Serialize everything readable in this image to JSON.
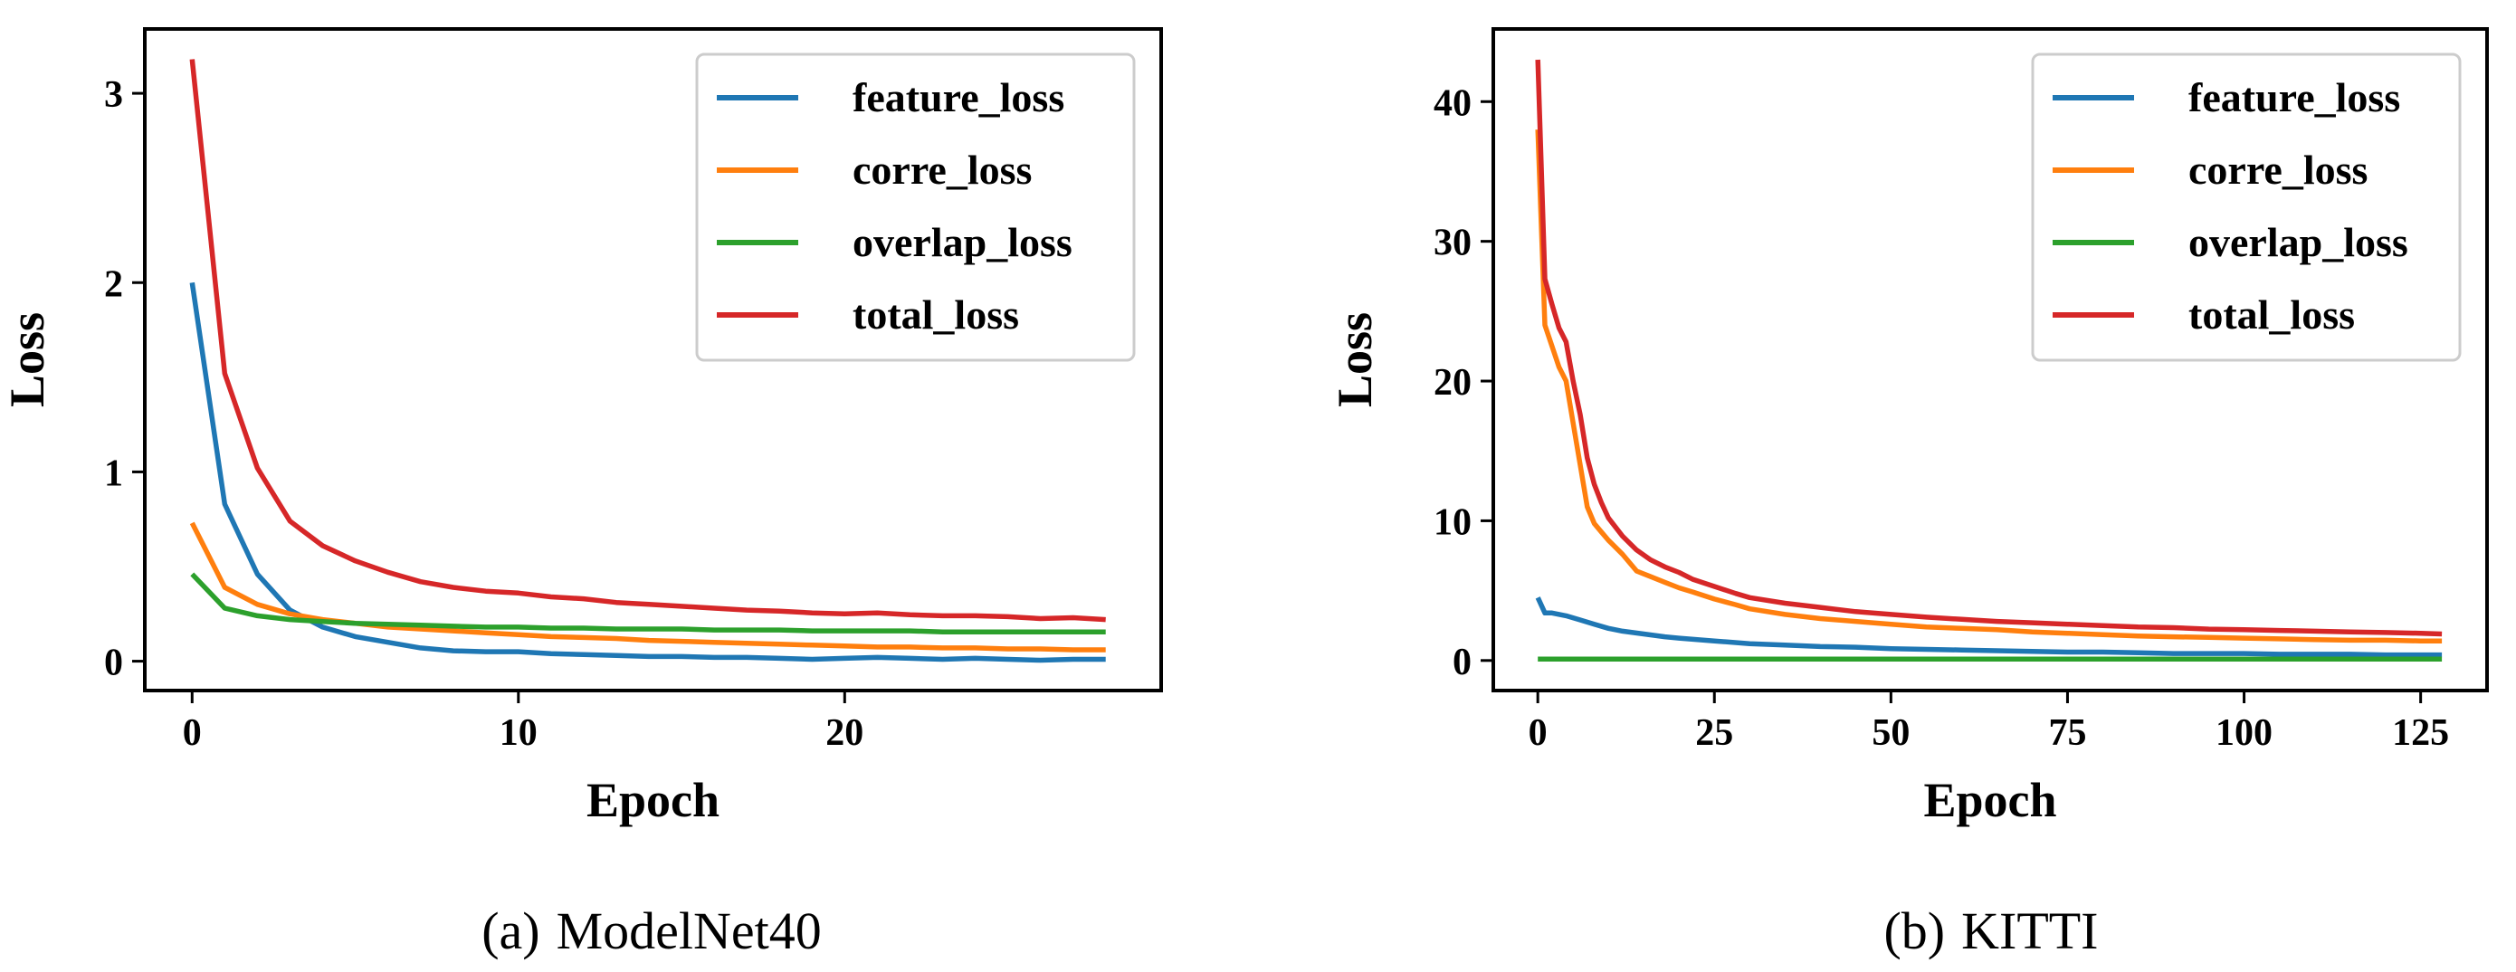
{
  "chart_data": [
    {
      "type": "line",
      "caption_tag": "(a)",
      "caption_text": "ModelNet40",
      "xlabel": "Epoch",
      "ylabel": "Loss",
      "xlim": [
        -1.45,
        29.7
      ],
      "ylim": [
        -0.155,
        3.34
      ],
      "xticks": [
        0,
        10,
        20
      ],
      "yticks": [
        0,
        1,
        2,
        3
      ],
      "legend_position": "top-right",
      "colors": [
        "#1f77b4",
        "#ff7f0e",
        "#2ca02c",
        "#d62728"
      ],
      "series": [
        {
          "name": "feature_loss",
          "x": [
            0,
            1,
            2,
            3,
            4,
            5,
            6,
            7,
            8,
            9,
            10,
            11,
            12,
            13,
            14,
            15,
            16,
            17,
            18,
            19,
            20,
            21,
            22,
            23,
            24,
            25,
            26,
            27,
            28
          ],
          "values": [
            2.0,
            0.83,
            0.46,
            0.27,
            0.18,
            0.13,
            0.1,
            0.07,
            0.055,
            0.05,
            0.05,
            0.04,
            0.035,
            0.03,
            0.025,
            0.025,
            0.02,
            0.02,
            0.015,
            0.01,
            0.015,
            0.02,
            0.015,
            0.01,
            0.015,
            0.01,
            0.005,
            0.01,
            0.01
          ]
        },
        {
          "name": "corre_loss",
          "x": [
            0,
            1,
            2,
            3,
            4,
            5,
            6,
            7,
            8,
            9,
            10,
            11,
            12,
            13,
            14,
            15,
            16,
            17,
            18,
            19,
            20,
            21,
            22,
            23,
            24,
            25,
            26,
            27,
            28
          ],
          "values": [
            0.73,
            0.39,
            0.3,
            0.25,
            0.22,
            0.2,
            0.18,
            0.17,
            0.16,
            0.15,
            0.14,
            0.13,
            0.125,
            0.12,
            0.11,
            0.105,
            0.1,
            0.095,
            0.09,
            0.085,
            0.08,
            0.075,
            0.075,
            0.07,
            0.07,
            0.065,
            0.065,
            0.06,
            0.06
          ]
        },
        {
          "name": "overlap_loss",
          "x": [
            0,
            1,
            2,
            3,
            4,
            5,
            6,
            7,
            8,
            9,
            10,
            11,
            12,
            13,
            14,
            15,
            16,
            17,
            18,
            19,
            20,
            21,
            22,
            23,
            24,
            25,
            26,
            27,
            28
          ],
          "values": [
            0.46,
            0.28,
            0.24,
            0.22,
            0.21,
            0.2,
            0.195,
            0.19,
            0.185,
            0.18,
            0.18,
            0.175,
            0.175,
            0.17,
            0.17,
            0.17,
            0.165,
            0.165,
            0.165,
            0.16,
            0.16,
            0.16,
            0.16,
            0.155,
            0.155,
            0.155,
            0.155,
            0.155,
            0.155
          ]
        },
        {
          "name": "total_loss",
          "x": [
            0,
            1,
            2,
            3,
            4,
            5,
            6,
            7,
            8,
            9,
            10,
            11,
            12,
            13,
            14,
            15,
            16,
            17,
            18,
            19,
            20,
            21,
            22,
            23,
            24,
            25,
            26,
            27,
            28
          ],
          "values": [
            3.18,
            1.52,
            1.02,
            0.74,
            0.61,
            0.53,
            0.47,
            0.42,
            0.39,
            0.37,
            0.36,
            0.34,
            0.33,
            0.31,
            0.3,
            0.29,
            0.28,
            0.27,
            0.265,
            0.255,
            0.25,
            0.255,
            0.245,
            0.24,
            0.24,
            0.235,
            0.225,
            0.23,
            0.22
          ]
        }
      ]
    },
    {
      "type": "line",
      "caption_tag": "(b)",
      "caption_text": "KITTI",
      "xlabel": "Epoch",
      "ylabel": "Loss",
      "xlim": [
        -6.3,
        134.4
      ],
      "ylim": [
        -2.15,
        45.2
      ],
      "xticks": [
        0,
        25,
        50,
        75,
        100,
        125
      ],
      "yticks": [
        0,
        10,
        20,
        30,
        40
      ],
      "legend_position": "top-right",
      "colors": [
        "#1f77b4",
        "#ff7f0e",
        "#2ca02c",
        "#d62728"
      ],
      "series": [
        {
          "name": "feature_loss",
          "x": [
            0,
            1,
            2,
            4,
            6,
            8,
            10,
            12,
            15,
            18,
            20,
            25,
            30,
            35,
            40,
            45,
            50,
            55,
            60,
            65,
            70,
            75,
            80,
            85,
            90,
            95,
            100,
            105,
            110,
            115,
            120,
            125,
            128
          ],
          "values": [
            4.5,
            3.4,
            3.4,
            3.2,
            2.9,
            2.6,
            2.3,
            2.1,
            1.9,
            1.7,
            1.6,
            1.4,
            1.2,
            1.1,
            1.0,
            0.95,
            0.85,
            0.8,
            0.75,
            0.7,
            0.65,
            0.6,
            0.6,
            0.55,
            0.5,
            0.5,
            0.5,
            0.45,
            0.45,
            0.45,
            0.4,
            0.4,
            0.4
          ]
        },
        {
          "name": "corre_loss",
          "x": [
            0,
            1,
            2,
            3,
            4,
            5,
            6,
            7,
            8,
            9,
            10,
            12,
            14,
            16,
            18,
            20,
            22,
            25,
            28,
            30,
            35,
            40,
            45,
            50,
            55,
            60,
            65,
            70,
            75,
            80,
            85,
            90,
            95,
            100,
            105,
            110,
            115,
            120,
            125,
            128
          ],
          "values": [
            38,
            24,
            22.5,
            21,
            20,
            17,
            14,
            11,
            9.8,
            9.2,
            8.6,
            7.6,
            6.4,
            6.0,
            5.6,
            5.2,
            4.9,
            4.4,
            4.0,
            3.7,
            3.3,
            3.0,
            2.8,
            2.6,
            2.4,
            2.3,
            2.2,
            2.05,
            1.95,
            1.85,
            1.75,
            1.7,
            1.65,
            1.6,
            1.55,
            1.5,
            1.45,
            1.45,
            1.4,
            1.4
          ]
        },
        {
          "name": "overlap_loss",
          "x": [
            0,
            128
          ],
          "values": [
            0.1,
            0.1
          ]
        },
        {
          "name": "total_loss",
          "x": [
            0,
            1,
            2,
            3,
            4,
            5,
            6,
            7,
            8,
            9,
            10,
            12,
            14,
            16,
            18,
            20,
            22,
            25,
            28,
            30,
            35,
            40,
            45,
            50,
            55,
            60,
            65,
            70,
            75,
            80,
            85,
            90,
            95,
            100,
            105,
            110,
            115,
            120,
            125,
            128
          ],
          "values": [
            43,
            27.3,
            25.5,
            23.8,
            22.8,
            20,
            17.6,
            14.5,
            12.6,
            11.3,
            10.2,
            8.9,
            7.9,
            7.2,
            6.7,
            6.3,
            5.8,
            5.3,
            4.8,
            4.5,
            4.1,
            3.8,
            3.5,
            3.3,
            3.1,
            2.95,
            2.8,
            2.7,
            2.6,
            2.5,
            2.4,
            2.35,
            2.25,
            2.2,
            2.15,
            2.1,
            2.05,
            2.0,
            1.95,
            1.9
          ]
        }
      ]
    }
  ]
}
